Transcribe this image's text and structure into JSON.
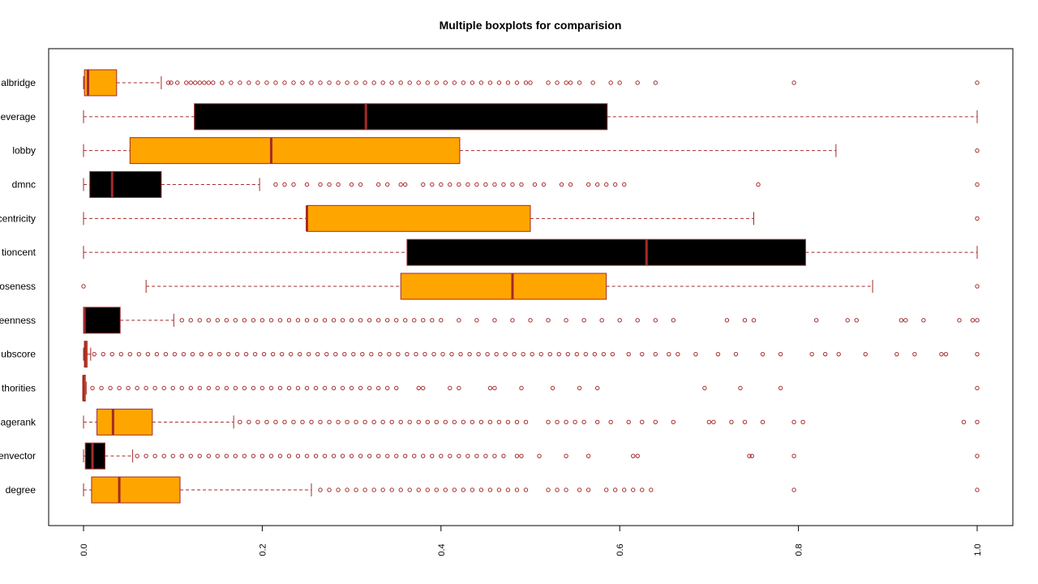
{
  "chart_data": {
    "type": "boxplot",
    "orientation": "horizontal",
    "title": "Multiple boxplots for comparision",
    "xlabel": "",
    "ylabel": "",
    "xlim": [
      0,
      1
    ],
    "x_ticks": [
      0.0,
      0.2,
      0.4,
      0.6,
      0.8,
      1.0
    ],
    "x_tick_labels": [
      "0.0",
      "0.2",
      "0.4",
      "0.6",
      "0.8",
      "1.0"
    ],
    "colors": {
      "orange_box": "#FFA500",
      "black_box": "#000000",
      "median_border": "#A52A2A"
    },
    "series": [
      {
        "name": "degree",
        "fill": "orange",
        "whisker_low": 0.0,
        "q1": 0.009,
        "median": 0.04,
        "q3": 0.108,
        "whisker_high": 0.255,
        "outliers": [
          0.265,
          0.275,
          0.285,
          0.295,
          0.305,
          0.315,
          0.325,
          0.335,
          0.345,
          0.355,
          0.365,
          0.375,
          0.385,
          0.395,
          0.405,
          0.415,
          0.425,
          0.435,
          0.445,
          0.455,
          0.465,
          0.475,
          0.485,
          0.495,
          0.52,
          0.53,
          0.54,
          0.555,
          0.565,
          0.585,
          0.595,
          0.605,
          0.615,
          0.625,
          0.635,
          0.795,
          1.0
        ]
      },
      {
        "name": "eigenvector",
        "fill": "black",
        "whisker_low": 0.0,
        "q1": 0.002,
        "median": 0.01,
        "q3": 0.024,
        "whisker_high": 0.055,
        "outliers": [
          0.06,
          0.07,
          0.08,
          0.09,
          0.1,
          0.11,
          0.12,
          0.13,
          0.14,
          0.15,
          0.16,
          0.17,
          0.18,
          0.19,
          0.2,
          0.21,
          0.22,
          0.23,
          0.24,
          0.25,
          0.26,
          0.27,
          0.28,
          0.29,
          0.3,
          0.31,
          0.32,
          0.33,
          0.34,
          0.35,
          0.36,
          0.37,
          0.38,
          0.39,
          0.4,
          0.41,
          0.42,
          0.43,
          0.44,
          0.45,
          0.46,
          0.47,
          0.485,
          0.49,
          0.51,
          0.54,
          0.565,
          0.615,
          0.62,
          0.745,
          0.748,
          0.795,
          1.0
        ]
      },
      {
        "name": "pagerank",
        "fill": "orange",
        "whisker_low": 0.0,
        "q1": 0.015,
        "median": 0.033,
        "q3": 0.077,
        "whisker_high": 0.168,
        "outliers": [
          0.175,
          0.185,
          0.195,
          0.205,
          0.215,
          0.225,
          0.235,
          0.245,
          0.255,
          0.265,
          0.275,
          0.285,
          0.295,
          0.305,
          0.315,
          0.325,
          0.335,
          0.345,
          0.355,
          0.365,
          0.375,
          0.385,
          0.395,
          0.405,
          0.415,
          0.425,
          0.435,
          0.445,
          0.455,
          0.465,
          0.475,
          0.485,
          0.495,
          0.52,
          0.53,
          0.54,
          0.55,
          0.56,
          0.575,
          0.59,
          0.61,
          0.625,
          0.64,
          0.66,
          0.7,
          0.705,
          0.725,
          0.74,
          0.76,
          0.795,
          0.805,
          0.985,
          1.0
        ]
      },
      {
        "name": "authorities",
        "fill": "orange",
        "whisker_low": 0.0,
        "q1": 0.0,
        "median": 0.0,
        "q3": 0.002,
        "whisker_high": 0.003,
        "outliers": [
          0.01,
          0.02,
          0.03,
          0.04,
          0.05,
          0.06,
          0.07,
          0.08,
          0.09,
          0.1,
          0.11,
          0.12,
          0.13,
          0.14,
          0.15,
          0.16,
          0.17,
          0.18,
          0.19,
          0.2,
          0.21,
          0.22,
          0.23,
          0.24,
          0.25,
          0.26,
          0.27,
          0.28,
          0.29,
          0.3,
          0.31,
          0.32,
          0.33,
          0.34,
          0.35,
          0.375,
          0.38,
          0.41,
          0.42,
          0.455,
          0.46,
          0.49,
          0.525,
          0.555,
          0.575,
          0.695,
          0.735,
          0.78,
          1.0
        ]
      },
      {
        "name": "hubscore",
        "fill": "orange",
        "whisker_low": 0.0,
        "q1": 0.001,
        "median": 0.002,
        "q3": 0.004,
        "whisker_high": 0.008,
        "outliers": [
          0.012,
          0.022,
          0.032,
          0.042,
          0.052,
          0.062,
          0.072,
          0.082,
          0.092,
          0.102,
          0.112,
          0.122,
          0.132,
          0.142,
          0.152,
          0.162,
          0.172,
          0.182,
          0.192,
          0.202,
          0.212,
          0.222,
          0.232,
          0.242,
          0.252,
          0.262,
          0.272,
          0.282,
          0.292,
          0.302,
          0.312,
          0.322,
          0.332,
          0.342,
          0.352,
          0.362,
          0.372,
          0.382,
          0.392,
          0.402,
          0.412,
          0.422,
          0.432,
          0.442,
          0.452,
          0.462,
          0.472,
          0.482,
          0.492,
          0.502,
          0.512,
          0.522,
          0.532,
          0.542,
          0.552,
          0.562,
          0.572,
          0.582,
          0.592,
          0.61,
          0.625,
          0.64,
          0.655,
          0.665,
          0.685,
          0.71,
          0.73,
          0.76,
          0.78,
          0.815,
          0.83,
          0.845,
          0.875,
          0.91,
          0.93,
          0.96,
          0.965,
          1.0
        ]
      },
      {
        "name": "betweenness",
        "fill": "black",
        "whisker_low": 0.0,
        "q1": 0.0,
        "median": 0.001,
        "q3": 0.041,
        "whisker_high": 0.101,
        "outliers": [
          0.11,
          0.12,
          0.13,
          0.14,
          0.15,
          0.16,
          0.17,
          0.18,
          0.19,
          0.2,
          0.21,
          0.22,
          0.23,
          0.24,
          0.25,
          0.26,
          0.27,
          0.28,
          0.29,
          0.3,
          0.31,
          0.32,
          0.33,
          0.34,
          0.35,
          0.36,
          0.37,
          0.38,
          0.39,
          0.4,
          0.42,
          0.44,
          0.46,
          0.48,
          0.5,
          0.52,
          0.54,
          0.56,
          0.58,
          0.6,
          0.62,
          0.64,
          0.66,
          0.72,
          0.74,
          0.75,
          0.82,
          0.855,
          0.865,
          0.915,
          0.92,
          0.94,
          0.98,
          0.995,
          1.0
        ]
      },
      {
        "name": "closeness",
        "fill": "orange",
        "whisker_low": 0.07,
        "q1": 0.355,
        "median": 0.48,
        "q3": 0.585,
        "whisker_high": 0.883,
        "outliers": [
          0.0,
          1.0
        ]
      },
      {
        "name": "subgraphcentralizationcent",
        "fill": "black",
        "whisker_low": 0.0,
        "q1": 0.362,
        "median": 0.63,
        "q3": 0.808,
        "whisker_high": 1.0,
        "outliers": []
      },
      {
        "name": "eccentricity",
        "fill": "orange",
        "whisker_low": 0.0,
        "q1": 0.25,
        "median": 0.25,
        "q3": 0.5,
        "whisker_high": 0.75,
        "outliers": [
          1.0
        ]
      },
      {
        "name": "dmnc",
        "fill": "black",
        "whisker_low": 0.0,
        "q1": 0.007,
        "median": 0.032,
        "q3": 0.087,
        "whisker_high": 0.197,
        "outliers": [
          0.215,
          0.225,
          0.235,
          0.25,
          0.265,
          0.275,
          0.285,
          0.3,
          0.31,
          0.33,
          0.34,
          0.355,
          0.36,
          0.38,
          0.39,
          0.4,
          0.41,
          0.42,
          0.43,
          0.44,
          0.45,
          0.46,
          0.47,
          0.48,
          0.49,
          0.505,
          0.515,
          0.535,
          0.545,
          0.565,
          0.575,
          0.585,
          0.595,
          0.605,
          0.755,
          1.0
        ]
      },
      {
        "name": "lobby",
        "fill": "orange",
        "whisker_low": 0.0,
        "q1": 0.052,
        "median": 0.21,
        "q3": 0.421,
        "whisker_high": 0.842,
        "outliers": [
          1.0
        ]
      },
      {
        "name": "leverage",
        "fill": "black",
        "whisker_low": 0.0,
        "q1": 0.124,
        "median": 0.316,
        "q3": 0.586,
        "whisker_high": 1.0,
        "outliers": []
      },
      {
        "name": "localbridge",
        "fill": "orange",
        "whisker_low": 0.0,
        "q1": 0.001,
        "median": 0.005,
        "q3": 0.037,
        "whisker_high": 0.087,
        "outliers": [
          0.095,
          0.098,
          0.105,
          0.115,
          0.12,
          0.125,
          0.13,
          0.135,
          0.14,
          0.145,
          0.155,
          0.165,
          0.175,
          0.185,
          0.195,
          0.205,
          0.215,
          0.225,
          0.235,
          0.245,
          0.255,
          0.265,
          0.275,
          0.285,
          0.295,
          0.305,
          0.315,
          0.325,
          0.335,
          0.345,
          0.355,
          0.365,
          0.375,
          0.385,
          0.395,
          0.405,
          0.415,
          0.425,
          0.435,
          0.445,
          0.455,
          0.465,
          0.475,
          0.485,
          0.495,
          0.5,
          0.52,
          0.53,
          0.54,
          0.545,
          0.555,
          0.57,
          0.59,
          0.6,
          0.62,
          0.64,
          0.795,
          1.0
        ]
      }
    ],
    "visible_category_labels": [
      "degree",
      "envector",
      "agerank",
      "thorities",
      "ubscore",
      "eenness",
      "oseness",
      "tioncent",
      "centricity",
      "dmnc",
      "lobby",
      "everage",
      "albridge"
    ]
  }
}
